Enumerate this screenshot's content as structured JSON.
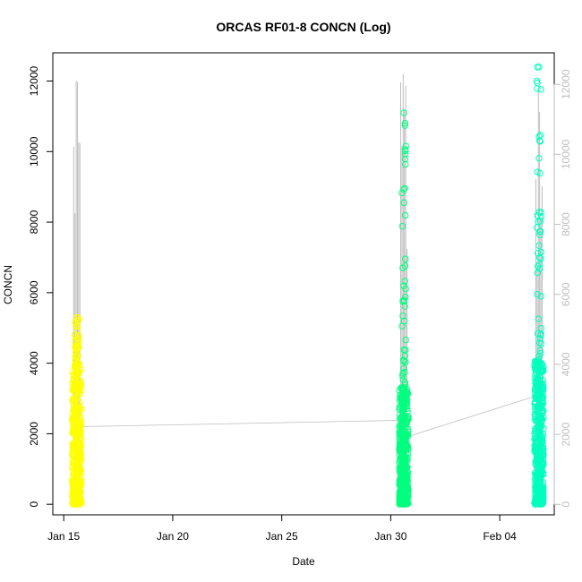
{
  "chart_data": {
    "type": "scatter",
    "title": "ORCAS RF01-8 CONCN (Log)",
    "xlabel": "Date",
    "ylabel": "CONCN",
    "x_ticks": [
      "Jan 15",
      "Jan 20",
      "Jan 25",
      "Jan 30",
      "Feb 04"
    ],
    "x_tick_days": [
      0,
      5,
      10,
      15,
      20
    ],
    "xlim_days": [
      -0.5,
      22.5
    ],
    "y_left_ticks": [
      0,
      2000,
      4000,
      6000,
      8000,
      10000,
      12000
    ],
    "y_right_ticks": [
      0,
      2000,
      4000,
      6000,
      8000,
      10000,
      12000
    ],
    "ylim_left": [
      -300,
      12800
    ],
    "ylim_right": [
      -300,
      12900
    ],
    "grid": false,
    "colors": {
      "flight_1": "#ffff00",
      "flight_2": "#00ff7f",
      "flight_3": "#00ffbf",
      "trend_line": "#bebebe",
      "right_axis": "#bebebe"
    },
    "series": [
      {
        "color_key": "flight_1",
        "day_range": [
          15.5,
          15.9
        ],
        "points_per_day": 0,
        "day_offset": 0.6,
        "gray_peak": 12000,
        "max": 5300,
        "body": 3900
      },
      {
        "color_key": "flight_2",
        "day_offset": 15.6,
        "gray_peak": 12200,
        "max": 11100,
        "body": 3300
      },
      {
        "color_key": "flight_3",
        "day_offset": 21.8,
        "gray_peak": 11800,
        "max": 12400,
        "body": 4100
      }
    ],
    "trend": [
      {
        "day": 0.7,
        "value": 2200
      },
      {
        "day": 15.6,
        "value": 2380
      },
      {
        "day": 15.7,
        "value": 1900
      },
      {
        "day": 21.8,
        "value": 3100
      }
    ]
  }
}
